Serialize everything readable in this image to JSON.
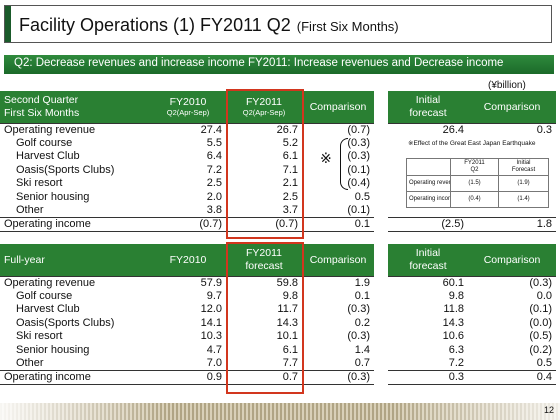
{
  "title": {
    "main": "Facility Operations (1) FY2011 Q2",
    "sub": "(First Six Months)"
  },
  "subtitle": "Q2: Decrease revenues and increase income   FY2011: Increase revenues and Decrease income",
  "unit": "(¥billion)",
  "q2": {
    "h_label1": "Second Quarter",
    "h_label2": "First Six Months",
    "h_fy2010": "FY2010",
    "h_fy2010_sub": "Q2(Apr-Sep)",
    "h_fy2011": "FY2011",
    "h_fy2011_sub": "Q2(Apr-Sep)",
    "h_comparison": "Comparison",
    "h_initial1": "Initial",
    "h_initial2": "forecast",
    "h_comparison2": "Comparison",
    "rows": [
      {
        "label": "Operating revenue",
        "fy2010": "27.4",
        "fy2011": "26.7",
        "comparison": "(0.7)",
        "initial": "26.4",
        "comp2": "0.3"
      },
      {
        "label": "Golf course",
        "fy2010": "5.5",
        "fy2011": "5.2",
        "comparison": "(0.3)",
        "initial": "",
        "comp2": ""
      },
      {
        "label": "Harvest Club",
        "fy2010": "6.4",
        "fy2011": "6.1",
        "comparison": "(0.3)",
        "initial": "",
        "comp2": ""
      },
      {
        "label": "Oasis(Sports Clubs)",
        "fy2010": "7.2",
        "fy2011": "7.1",
        "comparison": "(0.1)",
        "initial": "",
        "comp2": ""
      },
      {
        "label": "Ski resort",
        "fy2010": "2.5",
        "fy2011": "2.1",
        "comparison": "(0.4)",
        "initial": "",
        "comp2": ""
      },
      {
        "label": "Senior housing",
        "fy2010": "2.0",
        "fy2011": "2.5",
        "comparison": "0.5",
        "initial": "",
        "comp2": ""
      },
      {
        "label": "Other",
        "fy2010": "3.8",
        "fy2011": "3.7",
        "comparison": "(0.1)",
        "initial": "",
        "comp2": ""
      },
      {
        "label": "Operating income",
        "fy2010": "(0.7)",
        "fy2011": "(0.7)",
        "comparison": "0.1",
        "initial": "(2.5)",
        "comp2": "1.8"
      }
    ]
  },
  "note": {
    "asterisk": "※",
    "text": "※Effect of the Great East Japan Earthquake",
    "h_fy2011": "FY2011",
    "h_q2": "Q2",
    "h_initial": "Initial",
    "h_forecast": "Forecast",
    "r1": "Operating revenue",
    "r1_a": "(1.5)",
    "r1_b": "(1.9)",
    "r2": "Operating income",
    "r2_a": "(0.4)",
    "r2_b": "(1.4)"
  },
  "fy": {
    "h_label": "Full-year",
    "h_fy2010": "FY2010",
    "h_fy2011": "FY2011",
    "h_fy2011_sub": "forecast",
    "h_comparison": "Comparison",
    "h_initial1": "Initial",
    "h_initial2": "forecast",
    "h_comparison2": "Comparison",
    "rows": [
      {
        "label": "Operating revenue",
        "fy2010": "57.9",
        "fy2011": "59.8",
        "comparison": "1.9",
        "initial": "60.1",
        "comp2": "(0.3)"
      },
      {
        "label": "Golf course",
        "fy2010": "9.7",
        "fy2011": "9.8",
        "comparison": "0.1",
        "initial": "9.8",
        "comp2": "0.0"
      },
      {
        "label": "Harvest Club",
        "fy2010": "12.0",
        "fy2011": "11.7",
        "comparison": "(0.3)",
        "initial": "11.8",
        "comp2": "(0.1)"
      },
      {
        "label": "Oasis(Sports Clubs)",
        "fy2010": "14.1",
        "fy2011": "14.3",
        "comparison": "0.2",
        "initial": "14.3",
        "comp2": "(0.0)"
      },
      {
        "label": "Ski resort",
        "fy2010": "10.3",
        "fy2011": "10.1",
        "comparison": "(0.3)",
        "initial": "10.6",
        "comp2": "(0.5)"
      },
      {
        "label": "Senior housing",
        "fy2010": "4.7",
        "fy2011": "6.1",
        "comparison": "1.4",
        "initial": "6.3",
        "comp2": "(0.2)"
      },
      {
        "label": "Other",
        "fy2010": "7.0",
        "fy2011": "7.7",
        "comparison": "0.7",
        "initial": "7.2",
        "comp2": "0.5"
      },
      {
        "label": "Operating income",
        "fy2010": "0.9",
        "fy2011": "0.7",
        "comparison": "(0.3)",
        "initial": "0.3",
        "comp2": "0.4"
      }
    ]
  },
  "page_number": "12",
  "colors": {
    "header_green": "#2a8033",
    "highlight_red": "#d2361e",
    "accent": "#1a5a2a"
  }
}
